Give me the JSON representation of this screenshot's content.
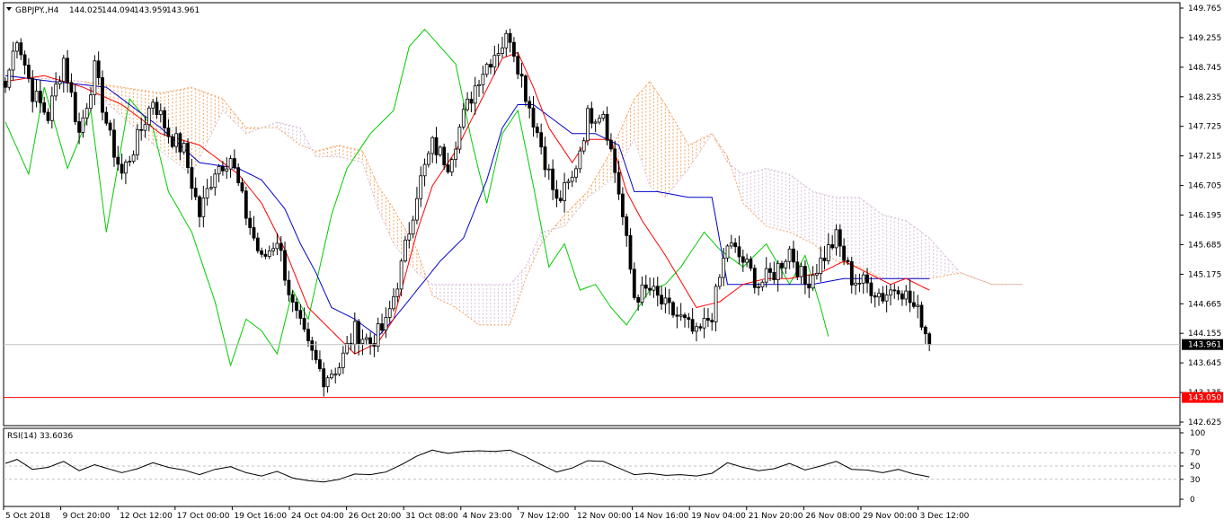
{
  "header": {
    "symbol": "GBPJPY.,H4",
    "open": "144.025",
    "high": "144.094",
    "low": "143.959",
    "close": "143.961"
  },
  "rsi_label": "RSI(14) 33.6036",
  "colors": {
    "bull": "#ffffff",
    "bear": "#000000",
    "tenkan": "#ff0000",
    "kijun": "#0000cc",
    "chikou": "#00cc00",
    "cloud_up": "#f4a460",
    "cloud_down": "#d8bfd8",
    "level": "#ff0000",
    "current": "#c0c0c0"
  },
  "chart_data": {
    "type": "candlestick",
    "price_axis": {
      "min": 142.625,
      "max": 149.765,
      "ticks": [
        "149.765",
        "149.255",
        "148.745",
        "148.235",
        "147.725",
        "147.215",
        "146.705",
        "146.195",
        "145.685",
        "145.175",
        "144.665",
        "144.155",
        "143.645",
        "143.135",
        "142.625"
      ]
    },
    "current_price": {
      "value": 143.961,
      "label": "143.961"
    },
    "level_line": {
      "value": 143.05,
      "label": "143.050"
    },
    "time_labels": [
      "5 Oct 2018",
      "9 Oct 20:00",
      "12 Oct 12:00",
      "17 Oct 00:00",
      "19 Oct 16:00",
      "24 Oct 04:00",
      "26 Oct 20:00",
      "31 Oct 08:00",
      "4 Nov 23:00",
      "7 Nov 12:00",
      "12 Nov 00:00",
      "14 Nov 16:00",
      "19 Nov 04:00",
      "21 Nov 20:00",
      "26 Nov 08:00",
      "29 Nov 00:00",
      "3 Dec 12:00"
    ],
    "anchors": [
      [
        0,
        148.4
      ],
      [
        3,
        149.3
      ],
      [
        7,
        148.3
      ],
      [
        11,
        147.9
      ],
      [
        15,
        148.9
      ],
      [
        19,
        147.6
      ],
      [
        23,
        148.7
      ],
      [
        27,
        147.5
      ],
      [
        30,
        146.9
      ],
      [
        34,
        147.5
      ],
      [
        38,
        148.2
      ],
      [
        42,
        147.6
      ],
      [
        46,
        147.3
      ],
      [
        50,
        146.2
      ],
      [
        54,
        147.0
      ],
      [
        58,
        147.2
      ],
      [
        62,
        146.2
      ],
      [
        66,
        145.4
      ],
      [
        70,
        145.8
      ],
      [
        74,
        144.6
      ],
      [
        78,
        143.9
      ],
      [
        82,
        143.4
      ],
      [
        86,
        143.6
      ],
      [
        90,
        144.2
      ],
      [
        94,
        144.0
      ],
      [
        98,
        144.3
      ],
      [
        102,
        145.3
      ],
      [
        106,
        146.6
      ],
      [
        110,
        147.4
      ],
      [
        114,
        147.1
      ],
      [
        118,
        147.9
      ],
      [
        122,
        148.6
      ],
      [
        126,
        149.0
      ],
      [
        130,
        149.3
      ],
      [
        134,
        148.3
      ],
      [
        138,
        147.4
      ],
      [
        142,
        146.4
      ],
      [
        146,
        146.8
      ],
      [
        150,
        147.9
      ],
      [
        154,
        148.0
      ],
      [
        158,
        146.6
      ],
      [
        162,
        144.8
      ],
      [
        166,
        144.9
      ],
      [
        170,
        144.6
      ],
      [
        174,
        144.4
      ],
      [
        178,
        144.1
      ],
      [
        182,
        144.5
      ],
      [
        186,
        145.7
      ],
      [
        190,
        145.4
      ],
      [
        194,
        145.0
      ],
      [
        198,
        145.2
      ],
      [
        202,
        145.6
      ],
      [
        206,
        145.0
      ],
      [
        210,
        145.4
      ],
      [
        214,
        145.8
      ],
      [
        218,
        145.1
      ],
      [
        222,
        145.0
      ],
      [
        226,
        144.8
      ],
      [
        230,
        145.0
      ],
      [
        234,
        144.6
      ],
      [
        236,
        144.4
      ],
      [
        238,
        143.96
      ]
    ],
    "tenkan": [
      [
        0,
        148.5
      ],
      [
        10,
        148.6
      ],
      [
        20,
        148.4
      ],
      [
        30,
        148.1
      ],
      [
        40,
        147.6
      ],
      [
        50,
        147.4
      ],
      [
        60,
        146.9
      ],
      [
        66,
        146.4
      ],
      [
        72,
        145.6
      ],
      [
        78,
        144.6
      ],
      [
        84,
        144.2
      ],
      [
        90,
        143.8
      ],
      [
        96,
        144.0
      ],
      [
        100,
        144.4
      ],
      [
        106,
        145.9
      ],
      [
        110,
        146.7
      ],
      [
        116,
        147.3
      ],
      [
        122,
        148.1
      ],
      [
        128,
        148.9
      ],
      [
        132,
        149.0
      ],
      [
        136,
        148.4
      ],
      [
        140,
        147.7
      ],
      [
        146,
        147.1
      ],
      [
        150,
        147.5
      ],
      [
        156,
        147.5
      ],
      [
        160,
        146.6
      ],
      [
        164,
        146.1
      ],
      [
        170,
        145.5
      ],
      [
        178,
        144.6
      ],
      [
        184,
        144.7
      ],
      [
        190,
        145.0
      ],
      [
        196,
        145.1
      ],
      [
        202,
        145.1
      ],
      [
        210,
        145.2
      ],
      [
        216,
        145.4
      ],
      [
        222,
        145.2
      ],
      [
        228,
        145.0
      ],
      [
        232,
        145.1
      ],
      [
        238,
        144.9
      ]
    ],
    "kijun": [
      [
        0,
        148.6
      ],
      [
        12,
        148.5
      ],
      [
        26,
        148.4
      ],
      [
        40,
        147.7
      ],
      [
        50,
        147.1
      ],
      [
        60,
        147.0
      ],
      [
        66,
        146.8
      ],
      [
        72,
        146.3
      ],
      [
        76,
        145.7
      ],
      [
        80,
        145.2
      ],
      [
        84,
        144.6
      ],
      [
        90,
        144.4
      ],
      [
        96,
        144.1
      ],
      [
        100,
        144.4
      ],
      [
        106,
        144.9
      ],
      [
        112,
        145.4
      ],
      [
        118,
        145.8
      ],
      [
        124,
        146.8
      ],
      [
        128,
        147.7
      ],
      [
        132,
        148.1
      ],
      [
        136,
        148.1
      ],
      [
        140,
        147.9
      ],
      [
        146,
        147.6
      ],
      [
        152,
        147.6
      ],
      [
        158,
        147.4
      ],
      [
        162,
        146.6
      ],
      [
        168,
        146.6
      ],
      [
        176,
        146.5
      ],
      [
        182,
        146.5
      ],
      [
        186,
        145.0
      ],
      [
        194,
        145.0
      ],
      [
        202,
        145.0
      ],
      [
        208,
        145.0
      ],
      [
        216,
        145.1
      ],
      [
        226,
        145.1
      ],
      [
        232,
        145.1
      ],
      [
        238,
        145.1
      ]
    ],
    "chikou": [
      [
        0,
        147.8
      ],
      [
        6,
        146.9
      ],
      [
        10,
        148.4
      ],
      [
        16,
        147.0
      ],
      [
        22,
        148.0
      ],
      [
        26,
        145.9
      ],
      [
        32,
        148.2
      ],
      [
        38,
        147.7
      ],
      [
        42,
        146.6
      ],
      [
        48,
        145.9
      ],
      [
        54,
        144.7
      ],
      [
        58,
        143.6
      ],
      [
        62,
        144.4
      ],
      [
        66,
        144.2
      ],
      [
        70,
        143.8
      ],
      [
        74,
        144.9
      ],
      [
        78,
        144.4
      ],
      [
        84,
        146.2
      ],
      [
        88,
        147.0
      ],
      [
        94,
        147.6
      ],
      [
        100,
        148.0
      ],
      [
        104,
        149.1
      ],
      [
        108,
        149.4
      ],
      [
        112,
        149.1
      ],
      [
        116,
        148.8
      ],
      [
        120,
        147.5
      ],
      [
        124,
        146.4
      ],
      [
        128,
        147.6
      ],
      [
        132,
        148.0
      ],
      [
        136,
        146.7
      ],
      [
        140,
        145.3
      ],
      [
        144,
        145.7
      ],
      [
        148,
        144.9
      ],
      [
        152,
        145.0
      ],
      [
        156,
        144.6
      ],
      [
        160,
        144.3
      ],
      [
        166,
        144.9
      ],
      [
        170,
        145.0
      ],
      [
        174,
        145.3
      ],
      [
        180,
        145.9
      ],
      [
        184,
        145.6
      ],
      [
        190,
        145.3
      ],
      [
        196,
        145.7
      ],
      [
        202,
        145.0
      ],
      [
        206,
        145.5
      ],
      [
        210,
        144.6
      ],
      [
        212,
        144.1
      ]
    ],
    "senkou_a": [
      [
        0,
        148.6
      ],
      [
        20,
        148.5
      ],
      [
        30,
        148.4
      ],
      [
        40,
        148.3
      ],
      [
        48,
        148.4
      ],
      [
        56,
        148.2
      ],
      [
        62,
        147.7
      ],
      [
        70,
        147.7
      ],
      [
        76,
        147.4
      ],
      [
        80,
        147.3
      ],
      [
        86,
        147.4
      ],
      [
        92,
        147.3
      ],
      [
        96,
        146.7
      ],
      [
        100,
        146.3
      ],
      [
        106,
        145.6
      ],
      [
        110,
        144.8
      ],
      [
        116,
        144.6
      ],
      [
        122,
        144.3
      ],
      [
        130,
        144.3
      ],
      [
        134,
        145.1
      ],
      [
        138,
        145.7
      ],
      [
        144,
        146.2
      ],
      [
        150,
        146.6
      ],
      [
        156,
        147.3
      ],
      [
        162,
        148.2
      ],
      [
        166,
        148.5
      ],
      [
        170,
        148.1
      ],
      [
        176,
        147.4
      ],
      [
        182,
        147.6
      ],
      [
        186,
        147.2
      ],
      [
        190,
        146.4
      ],
      [
        196,
        146.0
      ],
      [
        202,
        145.9
      ],
      [
        208,
        145.7
      ],
      [
        214,
        145.4
      ],
      [
        220,
        145.3
      ],
      [
        226,
        145.1
      ],
      [
        232,
        145.1
      ],
      [
        238,
        145.1
      ],
      [
        246,
        145.2
      ],
      [
        254,
        145.0
      ],
      [
        262,
        145.0
      ]
    ],
    "senkou_b": [
      [
        0,
        148.6
      ],
      [
        20,
        148.5
      ],
      [
        40,
        147.3
      ],
      [
        48,
        146.9
      ],
      [
        56,
        148.0
      ],
      [
        62,
        147.6
      ],
      [
        70,
        147.8
      ],
      [
        76,
        147.7
      ],
      [
        80,
        147.2
      ],
      [
        86,
        147.2
      ],
      [
        92,
        147.1
      ],
      [
        96,
        146.3
      ],
      [
        100,
        145.7
      ],
      [
        106,
        145.2
      ],
      [
        110,
        145.0
      ],
      [
        116,
        145.0
      ],
      [
        122,
        145.0
      ],
      [
        130,
        145.0
      ],
      [
        134,
        145.3
      ],
      [
        138,
        145.9
      ],
      [
        144,
        146.0
      ],
      [
        150,
        146.5
      ],
      [
        156,
        146.8
      ],
      [
        162,
        147.5
      ],
      [
        166,
        146.7
      ],
      [
        170,
        146.5
      ],
      [
        176,
        147.0
      ],
      [
        182,
        147.6
      ],
      [
        186,
        147.1
      ],
      [
        190,
        146.9
      ],
      [
        196,
        147.0
      ],
      [
        202,
        146.9
      ],
      [
        208,
        146.6
      ],
      [
        214,
        146.5
      ],
      [
        220,
        146.5
      ],
      [
        226,
        146.2
      ],
      [
        232,
        146.1
      ],
      [
        238,
        145.8
      ],
      [
        246,
        145.2
      ],
      [
        254,
        145.0
      ],
      [
        262,
        145.0
      ]
    ],
    "rsi": {
      "label": "RSI(14) 33.6036",
      "levels": [
        70,
        50,
        30
      ],
      "ticks": [
        "100",
        "70",
        "50",
        "30",
        "0"
      ],
      "min": 0,
      "max": 100,
      "values": [
        [
          0,
          54
        ],
        [
          3,
          60
        ],
        [
          7,
          45
        ],
        [
          11,
          48
        ],
        [
          15,
          57
        ],
        [
          19,
          43
        ],
        [
          23,
          52
        ],
        [
          27,
          45
        ],
        [
          30,
          40
        ],
        [
          34,
          46
        ],
        [
          38,
          55
        ],
        [
          42,
          48
        ],
        [
          46,
          44
        ],
        [
          50,
          37
        ],
        [
          54,
          45
        ],
        [
          58,
          49
        ],
        [
          62,
          40
        ],
        [
          66,
          35
        ],
        [
          70,
          42
        ],
        [
          74,
          32
        ],
        [
          78,
          28
        ],
        [
          82,
          26
        ],
        [
          86,
          30
        ],
        [
          90,
          38
        ],
        [
          94,
          37
        ],
        [
          98,
          41
        ],
        [
          102,
          52
        ],
        [
          106,
          65
        ],
        [
          110,
          74
        ],
        [
          114,
          69
        ],
        [
          118,
          72
        ],
        [
          122,
          73
        ],
        [
          126,
          72
        ],
        [
          130,
          74
        ],
        [
          134,
          64
        ],
        [
          138,
          52
        ],
        [
          142,
          41
        ],
        [
          146,
          47
        ],
        [
          150,
          58
        ],
        [
          154,
          57
        ],
        [
          158,
          47
        ],
        [
          162,
          37
        ],
        [
          166,
          39
        ],
        [
          170,
          36
        ],
        [
          174,
          37
        ],
        [
          178,
          35
        ],
        [
          182,
          39
        ],
        [
          186,
          55
        ],
        [
          190,
          48
        ],
        [
          194,
          43
        ],
        [
          198,
          46
        ],
        [
          202,
          54
        ],
        [
          206,
          44
        ],
        [
          210,
          50
        ],
        [
          214,
          57
        ],
        [
          218,
          45
        ],
        [
          222,
          44
        ],
        [
          226,
          40
        ],
        [
          230,
          45
        ],
        [
          234,
          38
        ],
        [
          236,
          36
        ],
        [
          238,
          33.6
        ]
      ]
    }
  }
}
